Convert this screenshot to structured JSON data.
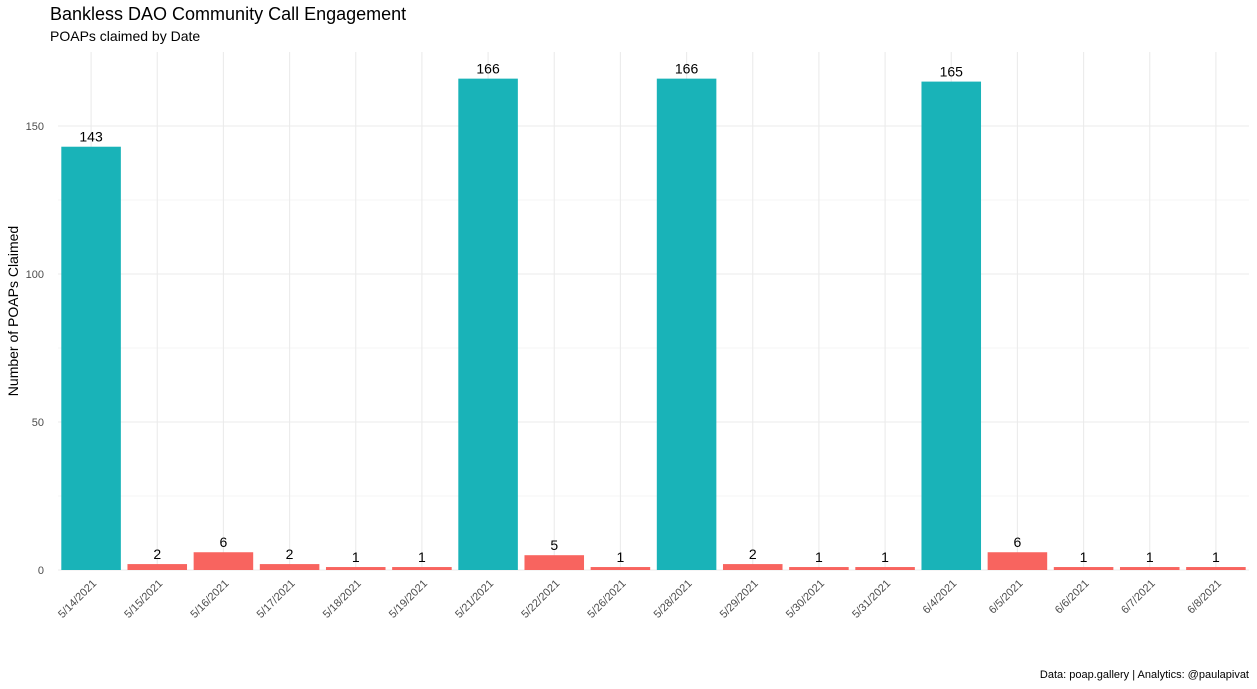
{
  "chart_data": {
    "type": "bar",
    "title": "Bankless DAO Community Call Engagement",
    "subtitle": "POAPs claimed by Date",
    "xlabel": "",
    "ylabel": "Number of POAPs Claimed",
    "caption": "Data: poap.gallery | Analytics: @paulapivat",
    "categories": [
      "5/14/2021",
      "5/15/2021",
      "5/16/2021",
      "5/17/2021",
      "5/18/2021",
      "5/19/2021",
      "5/21/2021",
      "5/22/2021",
      "5/26/2021",
      "5/28/2021",
      "5/29/2021",
      "5/30/2021",
      "5/31/2021",
      "6/4/2021",
      "6/5/2021",
      "6/6/2021",
      "6/7/2021",
      "6/8/2021"
    ],
    "values": [
      143,
      2,
      6,
      2,
      1,
      1,
      166,
      5,
      1,
      166,
      2,
      1,
      1,
      165,
      6,
      1,
      1,
      1
    ],
    "colors": [
      "#19b3b8",
      "#f8645f",
      "#f8645f",
      "#f8645f",
      "#f8645f",
      "#f8645f",
      "#19b3b8",
      "#f8645f",
      "#f8645f",
      "#19b3b8",
      "#f8645f",
      "#f8645f",
      "#f8645f",
      "#19b3b8",
      "#f8645f",
      "#f8645f",
      "#f8645f",
      "#f8645f"
    ],
    "y_ticks": [
      0,
      50,
      100,
      150
    ],
    "ylim": [
      0,
      175
    ],
    "grid": true,
    "legend": "none"
  }
}
